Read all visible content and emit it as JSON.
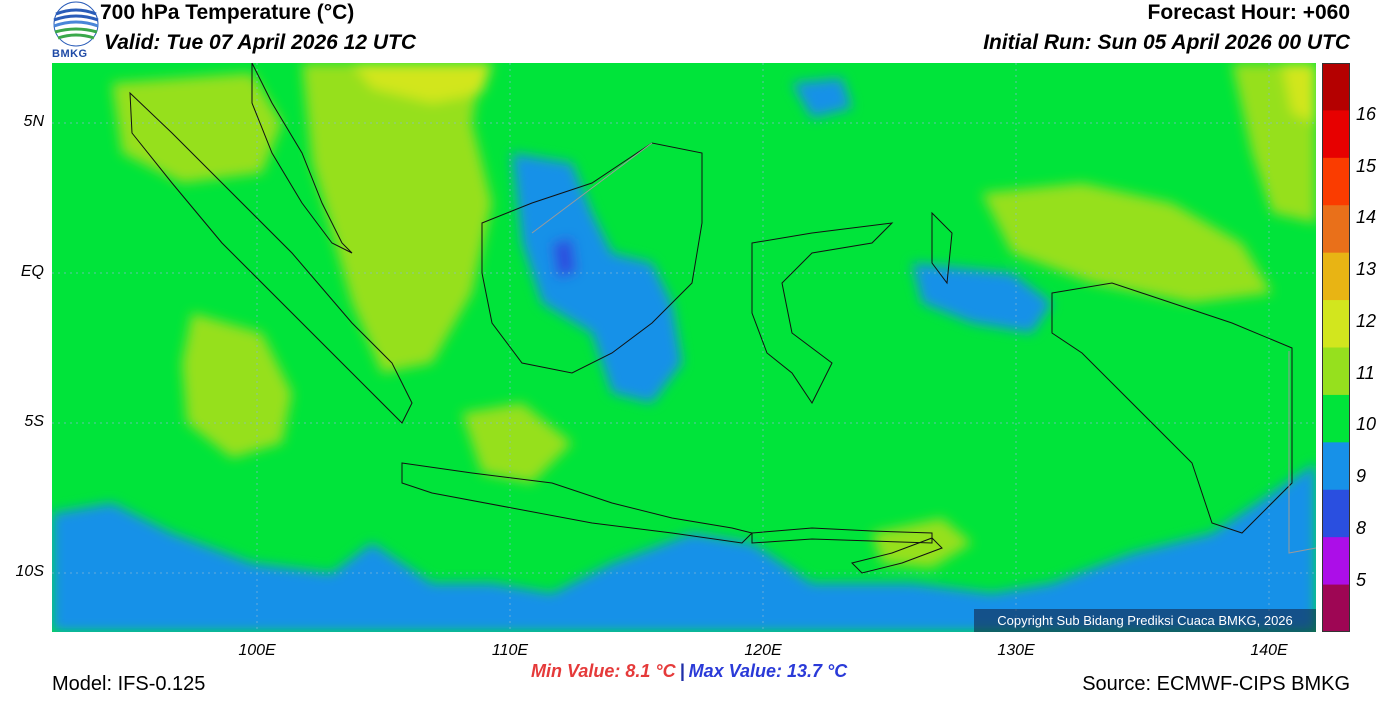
{
  "header": {
    "title": "700 hPa Temperature (°C)",
    "valid": "Valid: Tue 07 April 2026 12 UTC",
    "forecast_hour": "Forecast Hour: +060",
    "initial_run": "Initial Run: Sun 05 April 2026 00 UTC",
    "logo_text": "BMKG"
  },
  "map": {
    "lat_labels": [
      "5N",
      "EQ",
      "5S",
      "10S"
    ],
    "lon_labels": [
      "100E",
      "110E",
      "120E",
      "130E",
      "140E"
    ],
    "copyright": "Copyright Sub Bidang Prediksi Cuaca BMKG, 2026"
  },
  "colorbar": {
    "labels": [
      "16",
      "15",
      "14",
      "13",
      "12",
      "11",
      "10",
      "9",
      "8",
      "5"
    ],
    "colors": [
      "#b40000",
      "#e70000",
      "#fa3c00",
      "#e9701a",
      "#e8b414",
      "#d2e61e",
      "#96e01e",
      "#00e43a",
      "#1791e8",
      "#2a4fe0",
      "#ac0ee8",
      "#9e0654"
    ]
  },
  "footer": {
    "min_value": "Min Value: 8.1 °C",
    "separator": "|",
    "max_value": "Max Value: 13.7 °C",
    "model": "Model: IFS-0.125",
    "source": "Source: ECMWF-CIPS BMKG"
  }
}
